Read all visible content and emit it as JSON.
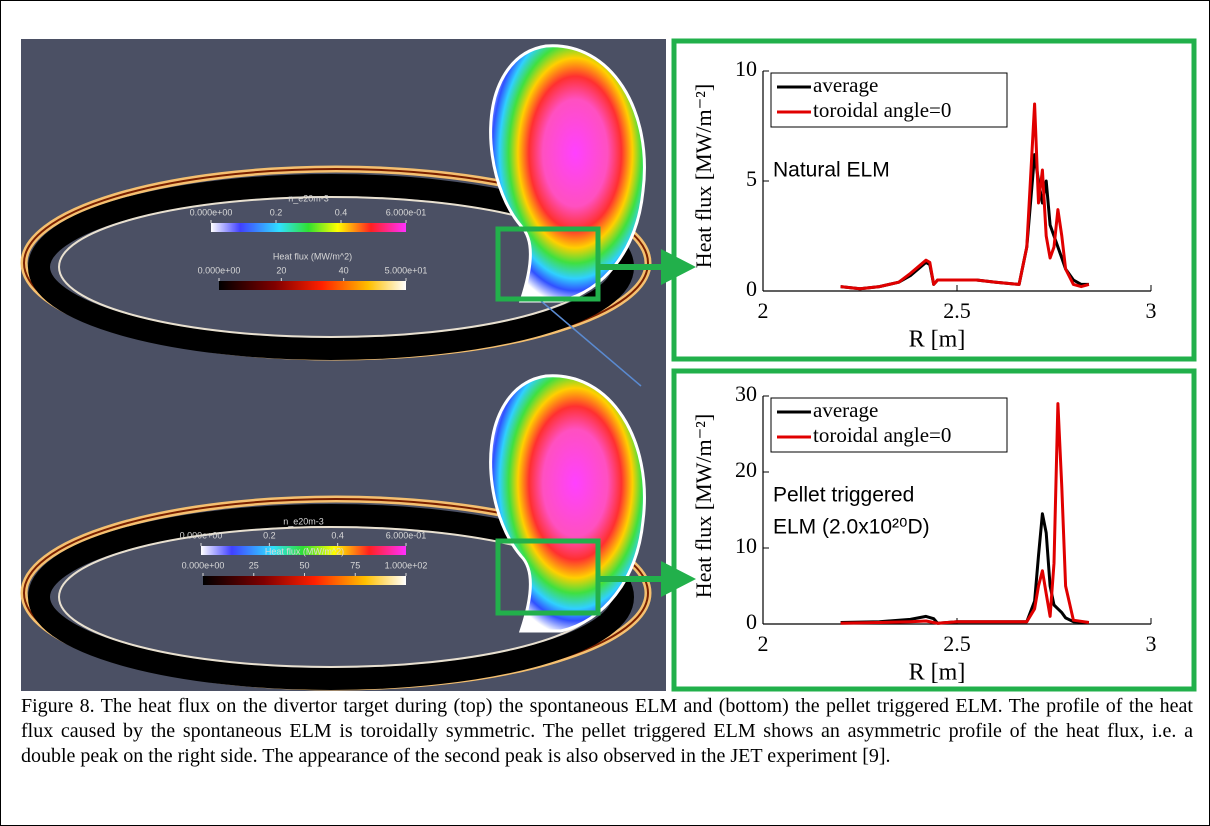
{
  "figure": {
    "caption": "Figure 8. The heat flux on the divertor target during (top) the spontaneous ELM and (bottom) the pellet triggered ELM. The profile of the heat flux caused by the spontaneous ELM is toroidally symmetric. The pellet triggered ELM shows an asymmetric profile of the heat flux, i.e. a double peak on the right side. The appearance of the second peak is also observed in the JET experiment [9].",
    "renders": [
      {
        "colorbars": [
          {
            "title": "n_e20m-3",
            "ticks": [
              "0.000e+00",
              "0.2",
              "0.4",
              "6.000e-01"
            ]
          },
          {
            "title": "Heat flux (MW/m^2)",
            "ticks": [
              "0.000e+00",
              "20",
              "40",
              "5.000e+01"
            ]
          }
        ]
      },
      {
        "colorbars": [
          {
            "title": "n_e20m-3",
            "ticks": [
              "0.000e+00",
              "0.2",
              "0.4",
              "6.000e-01"
            ]
          },
          {
            "title": "Heat flux (MW/m^2)",
            "ticks": [
              "0.000e+00",
              "25",
              "50",
              "75",
              "1.000e+02"
            ]
          }
        ]
      }
    ]
  },
  "chart_data": [
    {
      "type": "line",
      "xlabel": "R [m]",
      "ylabel": "Heat flux [MW/m⁻²]",
      "annotation": [
        "Natural ELM"
      ],
      "x": [
        2.2,
        2.25,
        2.3,
        2.35,
        2.38,
        2.4,
        2.42,
        2.43,
        2.44,
        2.45,
        2.46,
        2.5,
        2.55,
        2.6,
        2.66,
        2.68,
        2.7,
        2.71,
        2.72,
        2.73,
        2.74,
        2.75,
        2.76,
        2.77,
        2.78,
        2.8,
        2.82,
        2.84
      ],
      "series": [
        {
          "name": "average",
          "color": "#000000",
          "values": [
            0.2,
            0.1,
            0.2,
            0.4,
            0.7,
            1.0,
            1.3,
            1.2,
            0.3,
            0.5,
            0.5,
            0.5,
            0.5,
            0.4,
            0.3,
            2,
            6.2,
            5,
            4,
            5,
            3,
            2.5,
            2,
            1.5,
            1,
            0.5,
            0.3,
            0.3
          ]
        },
        {
          "name": "toroidal angle=0",
          "color": "#e00000",
          "values": [
            0.2,
            0.1,
            0.2,
            0.4,
            0.8,
            1.1,
            1.4,
            1.3,
            0.3,
            0.5,
            0.5,
            0.5,
            0.5,
            0.4,
            0.3,
            2,
            8.5,
            4,
            5.5,
            2.5,
            1.5,
            2,
            3.7,
            2.5,
            1,
            0.3,
            0.2,
            0.3
          ]
        }
      ],
      "xlim": [
        2,
        3
      ],
      "xticks": [
        2,
        2.5,
        3
      ],
      "ylim": [
        0,
        10
      ],
      "yticks": [
        0,
        5,
        10
      ],
      "legend": "upper left"
    },
    {
      "type": "line",
      "xlabel": "R [m]",
      "ylabel": "Heat flux [MW/m⁻²]",
      "annotation": [
        "Pellet triggered",
        "ELM (2.0x10²⁰D)"
      ],
      "x": [
        2.2,
        2.3,
        2.38,
        2.42,
        2.44,
        2.45,
        2.5,
        2.6,
        2.68,
        2.7,
        2.71,
        2.72,
        2.73,
        2.74,
        2.75,
        2.76,
        2.77,
        2.78,
        2.8,
        2.84
      ],
      "series": [
        {
          "name": "average",
          "color": "#000000",
          "values": [
            0.2,
            0.3,
            0.6,
            1.0,
            0.7,
            0.1,
            0.3,
            0.3,
            0.3,
            3,
            9,
            14.5,
            12,
            5,
            2.5,
            2,
            1.5,
            0.8,
            0.3,
            0.2
          ]
        },
        {
          "name": "toroidal angle=0",
          "color": "#e00000",
          "values": [
            0.1,
            0.2,
            0.3,
            0.4,
            0.2,
            0.1,
            0.3,
            0.3,
            0.3,
            2,
            5,
            7,
            4,
            1,
            8,
            29,
            18,
            5,
            0.5,
            0.2
          ]
        }
      ],
      "xlim": [
        2,
        3
      ],
      "xticks": [
        2,
        2.5,
        3
      ],
      "ylim": [
        0,
        30
      ],
      "yticks": [
        0,
        10,
        20,
        30
      ],
      "legend": "upper left"
    }
  ]
}
